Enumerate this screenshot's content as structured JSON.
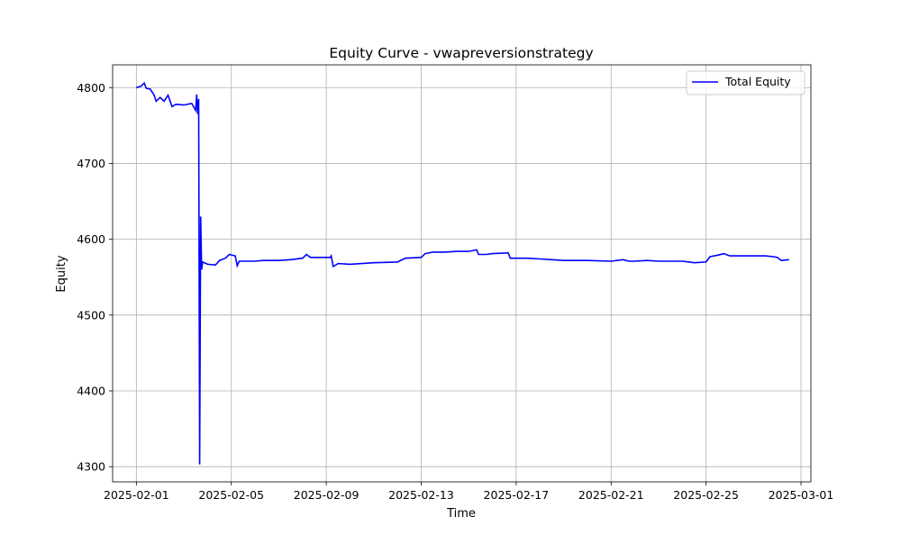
{
  "chart_data": {
    "type": "line",
    "title": "Equity Curve - vwapreversionstrategy",
    "xlabel": "Time",
    "ylabel": "Equity",
    "grid": true,
    "legend_position": "top-right",
    "xlim": [
      "2025-01-31T00:00",
      "2025-03-01T10:00"
    ],
    "ylim": [
      4280,
      4830
    ],
    "x_ticks": [
      "2025-02-01",
      "2025-02-05",
      "2025-02-09",
      "2025-02-13",
      "2025-02-17",
      "2025-02-21",
      "2025-02-25",
      "2025-03-01"
    ],
    "y_ticks": [
      4300,
      4400,
      4500,
      4600,
      4700,
      4800
    ],
    "series": [
      {
        "name": "Total Equity",
        "color": "#0000ff",
        "points": [
          [
            "2025-02-01T00:00",
            4800
          ],
          [
            "2025-02-01T05:00",
            4802
          ],
          [
            "2025-02-01T08:00",
            4806
          ],
          [
            "2025-02-01T10:00",
            4799
          ],
          [
            "2025-02-01T14:00",
            4798
          ],
          [
            "2025-02-01T18:00",
            4790
          ],
          [
            "2025-02-01T20:00",
            4782
          ],
          [
            "2025-02-02T00:00",
            4787
          ],
          [
            "2025-02-02T04:00",
            4782
          ],
          [
            "2025-02-02T08:00",
            4790
          ],
          [
            "2025-02-02T12:00",
            4775
          ],
          [
            "2025-02-02T16:00",
            4778
          ],
          [
            "2025-02-03T00:00",
            4777
          ],
          [
            "2025-02-03T08:00",
            4779
          ],
          [
            "2025-02-03T12:00",
            4770
          ],
          [
            "2025-02-03T13:00",
            4791
          ],
          [
            "2025-02-03T14:00",
            4765
          ],
          [
            "2025-02-03T15:00",
            4785
          ],
          [
            "2025-02-03T16:00",
            4303
          ],
          [
            "2025-02-03T17:00",
            4630
          ],
          [
            "2025-02-03T18:00",
            4560
          ],
          [
            "2025-02-03T19:00",
            4570
          ],
          [
            "2025-02-04T00:00",
            4567
          ],
          [
            "2025-02-04T08:00",
            4566
          ],
          [
            "2025-02-04T12:00",
            4572
          ],
          [
            "2025-02-04T18:00",
            4575
          ],
          [
            "2025-02-04T22:00",
            4580
          ],
          [
            "2025-02-05T04:00",
            4578
          ],
          [
            "2025-02-05T06:00",
            4565
          ],
          [
            "2025-02-05T08:00",
            4571
          ],
          [
            "2025-02-06T00:00",
            4571
          ],
          [
            "2025-02-06T08:00",
            4572
          ],
          [
            "2025-02-07T00:00",
            4572
          ],
          [
            "2025-02-07T12:00",
            4573
          ],
          [
            "2025-02-08T00:00",
            4575
          ],
          [
            "2025-02-08T04:00",
            4580
          ],
          [
            "2025-02-08T08:00",
            4576
          ],
          [
            "2025-02-09T04:00",
            4576
          ],
          [
            "2025-02-09T05:00",
            4578
          ],
          [
            "2025-02-09T07:00",
            4564
          ],
          [
            "2025-02-09T12:00",
            4568
          ],
          [
            "2025-02-10T00:00",
            4567
          ],
          [
            "2025-02-11T00:00",
            4569
          ],
          [
            "2025-02-12T00:00",
            4570
          ],
          [
            "2025-02-12T08:00",
            4575
          ],
          [
            "2025-02-13T00:00",
            4576
          ],
          [
            "2025-02-13T04:00",
            4581
          ],
          [
            "2025-02-13T12:00",
            4583
          ],
          [
            "2025-02-14T00:00",
            4583
          ],
          [
            "2025-02-14T12:00",
            4584
          ],
          [
            "2025-02-15T00:00",
            4584
          ],
          [
            "2025-02-15T08:00",
            4586
          ],
          [
            "2025-02-15T10:00",
            4580
          ],
          [
            "2025-02-15T18:00",
            4580
          ],
          [
            "2025-02-16T00:00",
            4581
          ],
          [
            "2025-02-16T16:00",
            4582
          ],
          [
            "2025-02-16T18:00",
            4575
          ],
          [
            "2025-02-17T12:00",
            4575
          ],
          [
            "2025-02-18T00:00",
            4574
          ],
          [
            "2025-02-18T12:00",
            4573
          ],
          [
            "2025-02-19T00:00",
            4572
          ],
          [
            "2025-02-20T00:00",
            4572
          ],
          [
            "2025-02-21T00:00",
            4571
          ],
          [
            "2025-02-21T12:00",
            4573
          ],
          [
            "2025-02-21T18:00",
            4571
          ],
          [
            "2025-02-22T00:00",
            4571
          ],
          [
            "2025-02-22T12:00",
            4572
          ],
          [
            "2025-02-23T00:00",
            4571
          ],
          [
            "2025-02-24T00:00",
            4571
          ],
          [
            "2025-02-24T12:00",
            4569
          ],
          [
            "2025-02-25T00:00",
            4570
          ],
          [
            "2025-02-25T04:00",
            4577
          ],
          [
            "2025-02-25T12:00",
            4579
          ],
          [
            "2025-02-25T18:00",
            4581
          ],
          [
            "2025-02-26T00:00",
            4578
          ],
          [
            "2025-02-27T00:00",
            4578
          ],
          [
            "2025-02-27T12:00",
            4578
          ],
          [
            "2025-02-27T20:00",
            4577
          ],
          [
            "2025-02-28T00:00",
            4576
          ],
          [
            "2025-02-28T04:00",
            4572
          ],
          [
            "2025-02-28T12:00",
            4573
          ]
        ]
      }
    ]
  }
}
